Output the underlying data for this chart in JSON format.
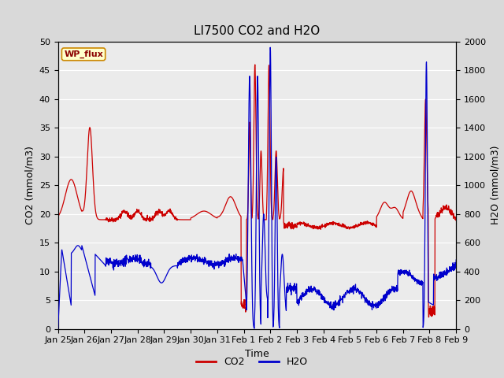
{
  "title": "LI7500 CO2 and H2O",
  "xlabel": "Time",
  "ylabel_left": "CO2 (mmol/m3)",
  "ylabel_right": "H2O (mmol/m3)",
  "ylim_left": [
    0,
    50
  ],
  "ylim_right": [
    0,
    2000
  ],
  "yticks_left": [
    0,
    5,
    10,
    15,
    20,
    25,
    30,
    35,
    40,
    45,
    50
  ],
  "yticks_right": [
    0,
    200,
    400,
    600,
    800,
    1000,
    1200,
    1400,
    1600,
    1800,
    2000
  ],
  "xtick_labels": [
    "Jan 25",
    "Jan 26",
    "Jan 27",
    "Jan 28",
    "Jan 29",
    "Jan 30",
    "Jan 31",
    "Feb 1",
    "Feb 2",
    "Feb 3",
    "Feb 4",
    "Feb 5",
    "Feb 6",
    "Feb 7",
    "Feb 8",
    "Feb 9"
  ],
  "co2_color": "#cc0000",
  "h2o_color": "#0000cc",
  "bg_color": "#d9d9d9",
  "plot_bg_color": "#ebebeb",
  "annotation_text": "WP_flux",
  "annotation_bg": "#ffffcc",
  "annotation_border": "#cc8800",
  "legend_co2": "CO2",
  "legend_h2o": "H2O",
  "title_fontsize": 11,
  "axis_fontsize": 9,
  "tick_fontsize": 8,
  "legend_fontsize": 9
}
